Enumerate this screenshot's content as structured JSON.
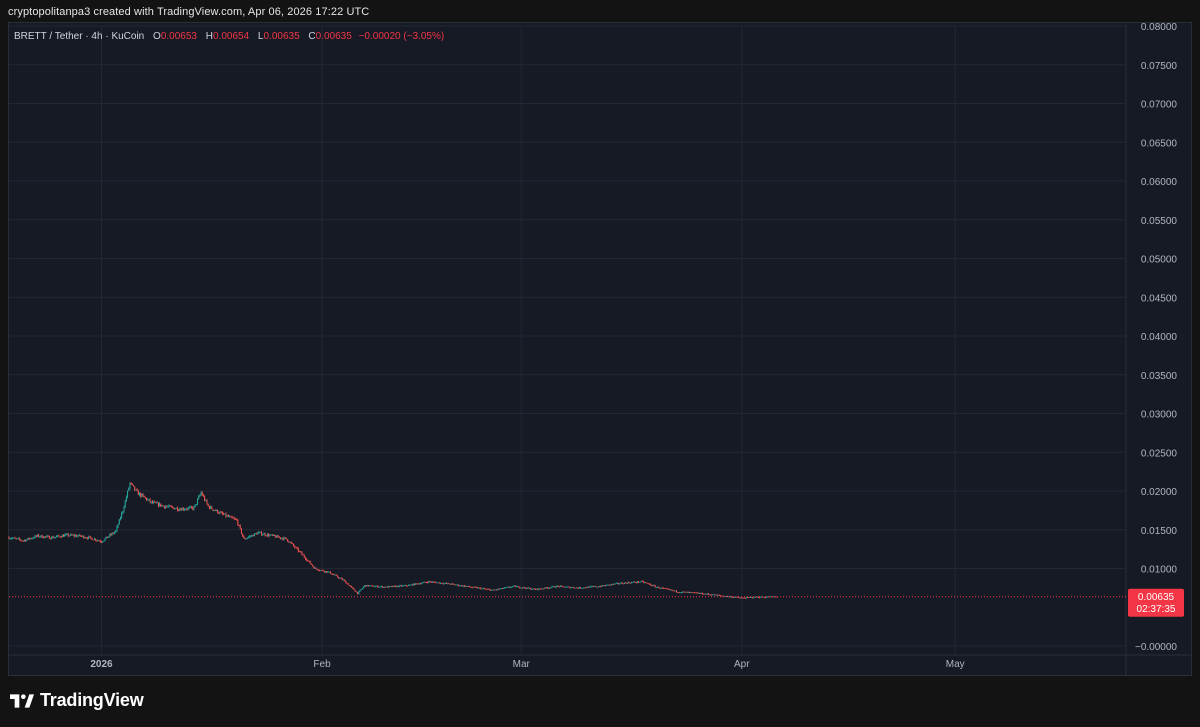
{
  "caption": "cryptopolitanpa3 created with TradingView.com, Apr 06, 2026 17:22 UTC",
  "legend": {
    "symbol": "BRETT / Tether · 4h · KuCoin",
    "open_label": "O",
    "open": "0.00653",
    "high_label": "H",
    "high": "0.00654",
    "low_label": "L",
    "low": "0.00635",
    "close_label": "C",
    "close": "0.00635",
    "change": "−0.00020 (−3.05%)"
  },
  "brand": {
    "name": "TradingView"
  },
  "colors": {
    "up": "#26a69a",
    "down": "#ef5350",
    "price_line": "#f23645",
    "grid": "#242733"
  },
  "chart_data": {
    "type": "candlestick",
    "y_ticks": [
      "0.08000",
      "0.07500",
      "0.07000",
      "0.06500",
      "0.06000",
      "0.05500",
      "0.05000",
      "0.04500",
      "0.04000",
      "0.03500",
      "0.03000",
      "0.02500",
      "0.02000",
      "0.01500",
      "0.01000",
      "−0.00000"
    ],
    "ylim": [
      0,
      0.08
    ],
    "x_ticks": [
      {
        "label": "2026",
        "date": "2026-01-01",
        "bold": true
      },
      {
        "label": "Feb",
        "date": "2026-02-01"
      },
      {
        "label": "Mar",
        "date": "2026-03-01"
      },
      {
        "label": "Apr",
        "date": "2026-04-01"
      },
      {
        "label": "May",
        "date": "2026-05-01"
      }
    ],
    "xlim": [
      "2025-12-19",
      "2026-05-25"
    ],
    "current_price": "0.00635",
    "countdown": "02:37:35",
    "series": [
      {
        "date": "2025-12-19",
        "close": 0.014
      },
      {
        "date": "2025-12-21",
        "close": 0.0136
      },
      {
        "date": "2025-12-23",
        "close": 0.0142
      },
      {
        "date": "2025-12-25",
        "close": 0.014
      },
      {
        "date": "2025-12-27",
        "close": 0.0143
      },
      {
        "date": "2025-12-29",
        "close": 0.0142
      },
      {
        "date": "2025-12-31",
        "close": 0.0138
      },
      {
        "date": "2026-01-01",
        "close": 0.0135
      },
      {
        "date": "2026-01-03",
        "close": 0.0148
      },
      {
        "date": "2026-01-04",
        "close": 0.0175
      },
      {
        "date": "2026-01-05",
        "close": 0.021
      },
      {
        "date": "2026-01-06",
        "close": 0.0198
      },
      {
        "date": "2026-01-08",
        "close": 0.0185
      },
      {
        "date": "2026-01-10",
        "close": 0.018
      },
      {
        "date": "2026-01-12",
        "close": 0.0177
      },
      {
        "date": "2026-01-14",
        "close": 0.0178
      },
      {
        "date": "2026-01-15",
        "close": 0.0198
      },
      {
        "date": "2026-01-16",
        "close": 0.018
      },
      {
        "date": "2026-01-18",
        "close": 0.017
      },
      {
        "date": "2026-01-20",
        "close": 0.0162
      },
      {
        "date": "2026-01-21",
        "close": 0.0138
      },
      {
        "date": "2026-01-23",
        "close": 0.0146
      },
      {
        "date": "2026-01-25",
        "close": 0.0142
      },
      {
        "date": "2026-01-27",
        "close": 0.0138
      },
      {
        "date": "2026-01-29",
        "close": 0.012
      },
      {
        "date": "2026-01-31",
        "close": 0.01
      },
      {
        "date": "2026-02-02",
        "close": 0.0095
      },
      {
        "date": "2026-02-04",
        "close": 0.0085
      },
      {
        "date": "2026-02-06",
        "close": 0.0068
      },
      {
        "date": "2026-02-07",
        "close": 0.0078
      },
      {
        "date": "2026-02-10",
        "close": 0.0076
      },
      {
        "date": "2026-02-13",
        "close": 0.0078
      },
      {
        "date": "2026-02-16",
        "close": 0.0083
      },
      {
        "date": "2026-02-19",
        "close": 0.008
      },
      {
        "date": "2026-02-22",
        "close": 0.0076
      },
      {
        "date": "2026-02-25",
        "close": 0.0072
      },
      {
        "date": "2026-02-28",
        "close": 0.0077
      },
      {
        "date": "2026-03-03",
        "close": 0.0073
      },
      {
        "date": "2026-03-06",
        "close": 0.0077
      },
      {
        "date": "2026-03-09",
        "close": 0.0075
      },
      {
        "date": "2026-03-12",
        "close": 0.0077
      },
      {
        "date": "2026-03-15",
        "close": 0.0081
      },
      {
        "date": "2026-03-18",
        "close": 0.0083
      },
      {
        "date": "2026-03-20",
        "close": 0.0076
      },
      {
        "date": "2026-03-23",
        "close": 0.007
      },
      {
        "date": "2026-03-26",
        "close": 0.0068
      },
      {
        "date": "2026-03-29",
        "close": 0.0065
      },
      {
        "date": "2026-04-01",
        "close": 0.0062
      },
      {
        "date": "2026-04-03",
        "close": 0.0063
      },
      {
        "date": "2026-04-06",
        "close": 0.00635
      }
    ]
  }
}
